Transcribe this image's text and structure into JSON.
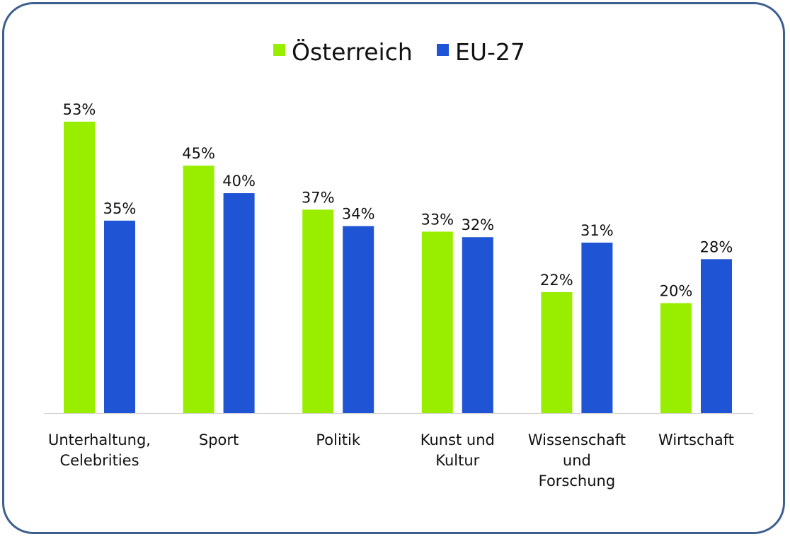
{
  "chart_data": {
    "type": "bar",
    "categories": [
      [
        "Unterhaltung,",
        "Celebrities"
      ],
      [
        "Sport"
      ],
      [
        "Politik"
      ],
      [
        "Kunst und",
        "Kultur"
      ],
      [
        "Wissenschaft",
        "und",
        "Forschung"
      ],
      [
        "Wirtschaft"
      ]
    ],
    "series": [
      {
        "name": "Österreich",
        "color": "#99ee00",
        "values": [
          53,
          45,
          37,
          33,
          22,
          20
        ],
        "labels": [
          "53%",
          "45%",
          "37%",
          "33%",
          "22%",
          "20%"
        ]
      },
      {
        "name": "EU-27",
        "color": "#1f55d4",
        "values": [
          35,
          40,
          34,
          32,
          31,
          28
        ],
        "labels": [
          "35%",
          "40%",
          "34%",
          "32%",
          "31%",
          "28%"
        ]
      }
    ],
    "ylim": [
      0,
      53
    ],
    "grid": false,
    "legend": "top-center",
    "title": "",
    "xlabel": "",
    "ylabel": ""
  }
}
